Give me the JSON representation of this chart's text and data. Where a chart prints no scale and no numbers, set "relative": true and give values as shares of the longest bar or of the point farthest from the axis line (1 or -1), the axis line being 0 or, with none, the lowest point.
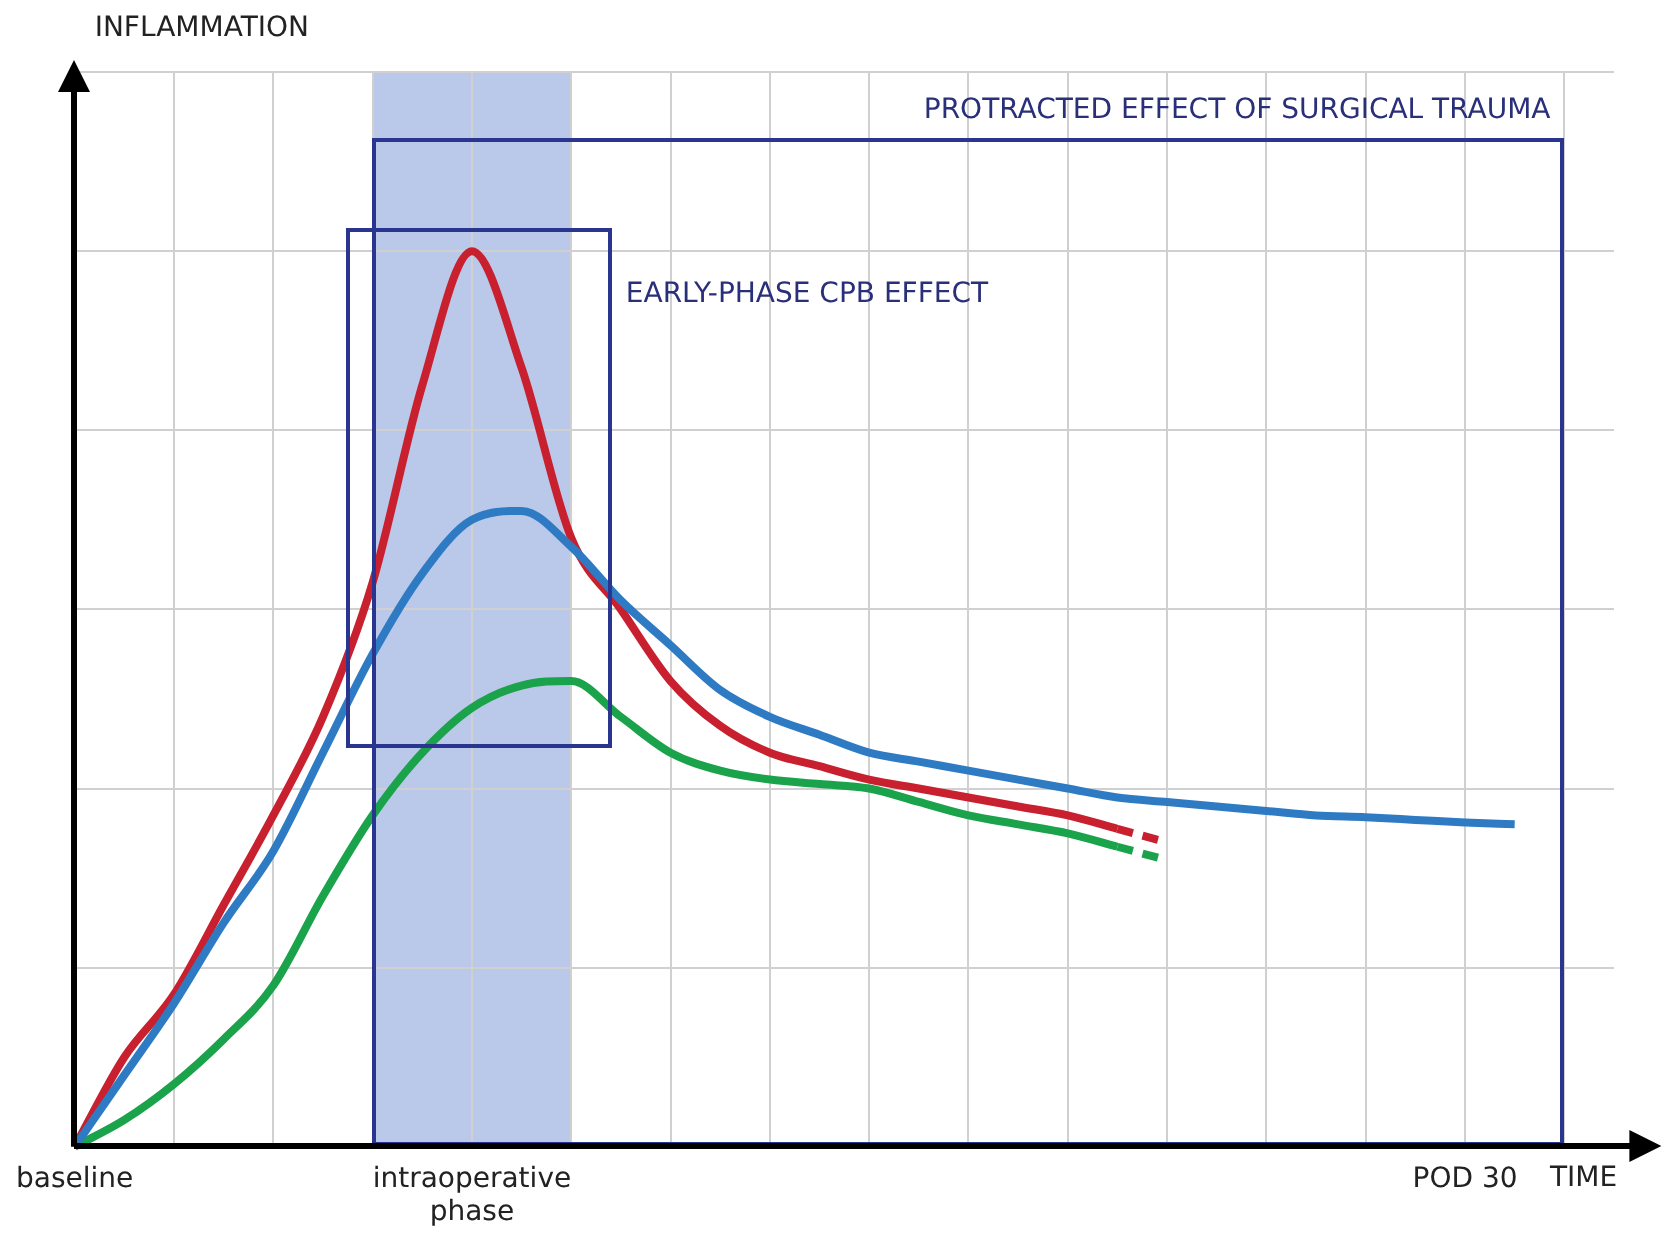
{
  "chart_data": {
    "type": "line",
    "relative": true,
    "xlabel": "TIME",
    "categories": [
      "baseline",
      null,
      null,
      null,
      null,
      null,
      null,
      null,
      "intraoperative phase",
      null,
      null,
      null,
      null,
      null,
      null,
      null,
      null,
      null,
      null,
      null,
      null,
      null,
      null,
      null,
      null,
      null,
      null,
      null,
      "POD 30",
      null,
      null,
      null
    ],
    "grid": true,
    "legend": false,
    "marker": "none",
    "annotations": [
      "PROTRACTED EFFECT OF SURGICAL TRAUMA",
      "EARLY-PHASE CPB EFFECT",
      "INFLAMMATION"
    ],
    "series": [
      {
        "color": "#2e7bc4",
        "line_style": "solid",
        "values": [
          0,
          0.08,
          0.16,
          0.25,
          0.33,
          0.44,
          0.55,
          0.64,
          0.7,
          0.71,
          0.67,
          0.61,
          0.56,
          0.51,
          0.48,
          0.46,
          0.44,
          0.43,
          0.42,
          0.41,
          0.4,
          0.39,
          0.385,
          0.38,
          0.375,
          0.37,
          0.368,
          0.365,
          0.362,
          0.36,
          null,
          null
        ]
      },
      {
        "color": "#1aa34a",
        "line_style": "solid",
        "values": [
          0,
          0.03,
          0.07,
          0.12,
          0.18,
          0.28,
          0.37,
          0.44,
          0.49,
          0.515,
          0.52,
          0.48,
          0.44,
          0.42,
          0.41,
          0.405,
          0.4,
          0.385,
          0.37,
          0.36,
          0.35,
          0.335,
          null,
          null,
          null,
          null,
          null,
          null,
          null,
          null,
          null,
          null
        ]
      },
      {
        "color": "#1aa34a",
        "line_style": "dashed",
        "values": [
          null,
          null,
          null,
          null,
          null,
          null,
          null,
          null,
          null,
          null,
          null,
          null,
          null,
          null,
          null,
          null,
          null,
          null,
          null,
          null,
          null,
          0.335,
          0.32,
          null,
          null,
          null,
          null,
          null,
          null,
          null,
          null,
          null
        ]
      },
      {
        "color": "#c8202f",
        "line_style": "solid",
        "values": [
          0,
          0.1,
          0.17,
          0.27,
          0.37,
          0.48,
          0.63,
          0.85,
          1,
          0.87,
          0.68,
          0.6,
          0.52,
          0.47,
          0.44,
          0.425,
          0.41,
          0.4,
          0.39,
          0.38,
          0.37,
          0.355,
          null,
          null,
          null,
          null,
          null,
          null,
          null,
          null,
          null,
          null
        ]
      },
      {
        "color": "#c8202f",
        "line_style": "dashed",
        "values": [
          null,
          null,
          null,
          null,
          null,
          null,
          null,
          null,
          null,
          null,
          null,
          null,
          null,
          null,
          null,
          null,
          null,
          null,
          null,
          null,
          null,
          0.355,
          0.34,
          null,
          null,
          null,
          null,
          null,
          null,
          null,
          null,
          null
        ]
      }
    ]
  }
}
